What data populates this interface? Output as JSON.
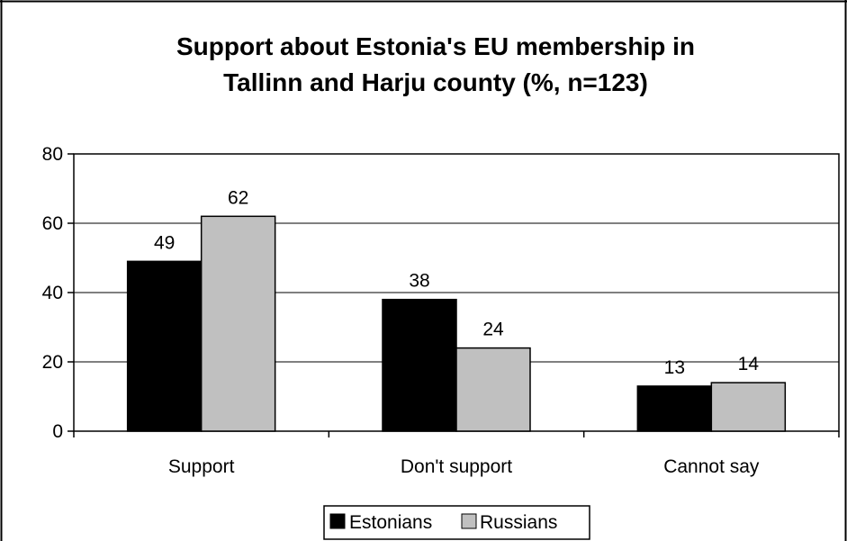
{
  "colors": {
    "estonians": "#000000",
    "russians": "#c0c0c0",
    "grid": "#000000",
    "frame": "#000000"
  },
  "chart_data": {
    "type": "bar",
    "title": "Support about Estonia's EU membership in Tallinn and Harju county (%, n=123)",
    "title_lines": [
      "Support about Estonia's EU membership in",
      "Tallinn and Harju county (%, n=123)"
    ],
    "categories": [
      "Support",
      "Don't support",
      "Cannot say"
    ],
    "series": [
      {
        "name": "Estonians",
        "values": [
          49,
          38,
          13
        ]
      },
      {
        "name": "Russians",
        "values": [
          62,
          24,
          14
        ]
      }
    ],
    "ylim": [
      0,
      80
    ],
    "yticks": [
      0,
      20,
      40,
      60,
      80
    ],
    "grid": true,
    "legend": "bottom",
    "data_labels": true
  }
}
